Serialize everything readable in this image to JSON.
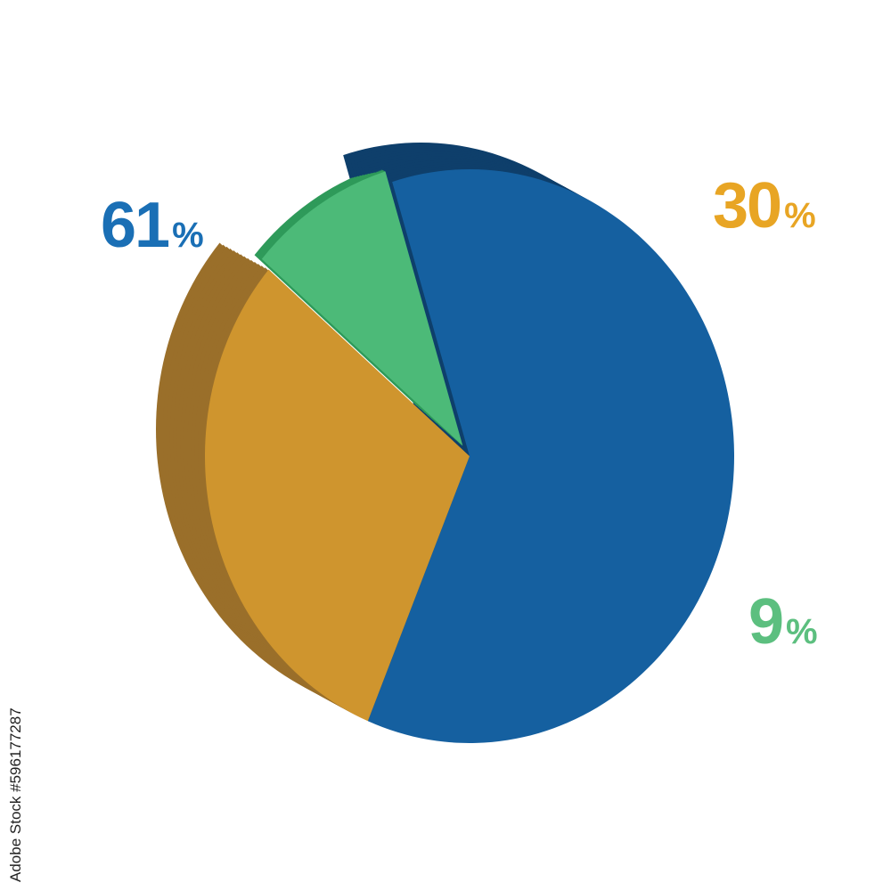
{
  "chart_data": {
    "type": "pie",
    "style": "3d-extruded",
    "values": [
      61,
      30,
      9
    ],
    "labels": [
      "61",
      "30",
      "9"
    ],
    "unit": "%",
    "colors": {
      "front": [
        "#1560a0",
        "#cf952e",
        "#4cba78"
      ],
      "side": [
        "#0e3f6b",
        "#9a6f2a",
        "#2f9a5a"
      ],
      "label": [
        "#1a6fb5",
        "#e8a524",
        "#5cbf7f"
      ]
    },
    "exploded": [
      false,
      false,
      true
    ]
  },
  "watermark": "Adobe Stock #596177287"
}
